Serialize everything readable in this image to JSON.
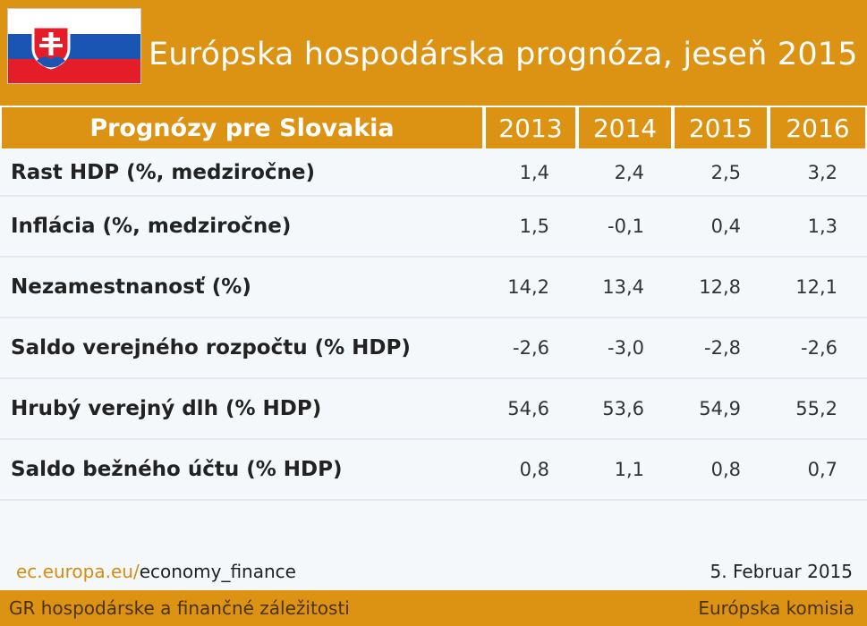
{
  "header": {
    "title": "Európska hospodárska prognóza, jeseň 2015",
    "flag_icon": "slovakia-flag-icon"
  },
  "table": {
    "label_header": "Prognózy pre Slovakia",
    "years": [
      "2013",
      "2014",
      "2015",
      "2016"
    ],
    "rows": [
      {
        "label": "Rast HDP (%, medziročne)",
        "values": [
          "1,4",
          "2,4",
          "2,5",
          "3,2"
        ]
      },
      {
        "label": "Inflácia (%, medziročne)",
        "values": [
          "1,5",
          "-0,1",
          "0,4",
          "1,3"
        ]
      },
      {
        "label": "Nezamestnanosť (%)",
        "values": [
          "14,2",
          "13,4",
          "12,8",
          "12,1"
        ]
      },
      {
        "label": "Saldo verejného rozpočtu (% HDP)",
        "values": [
          "-2,6",
          "-3,0",
          "-2,8",
          "-2,6"
        ]
      },
      {
        "label": "Hrubý verejný dlh (% HDP)",
        "values": [
          "54,6",
          "53,6",
          "54,9",
          "55,2"
        ]
      },
      {
        "label": "Saldo bežného účtu (% HDP)",
        "values": [
          "0,8",
          "1,1",
          "0,8",
          "0,7"
        ]
      }
    ]
  },
  "source": {
    "domain": "ec.europa.eu/",
    "path": "economy_finance",
    "date": "5. Februar 2015"
  },
  "footer": {
    "left": "GR hospodárske a finančné záležitosti",
    "right": "Európska komisia"
  },
  "colors": {
    "accent": "#dc9212",
    "flag_white": "#ffffff",
    "flag_blue": "#1b55b3",
    "flag_red": "#e41d28"
  }
}
